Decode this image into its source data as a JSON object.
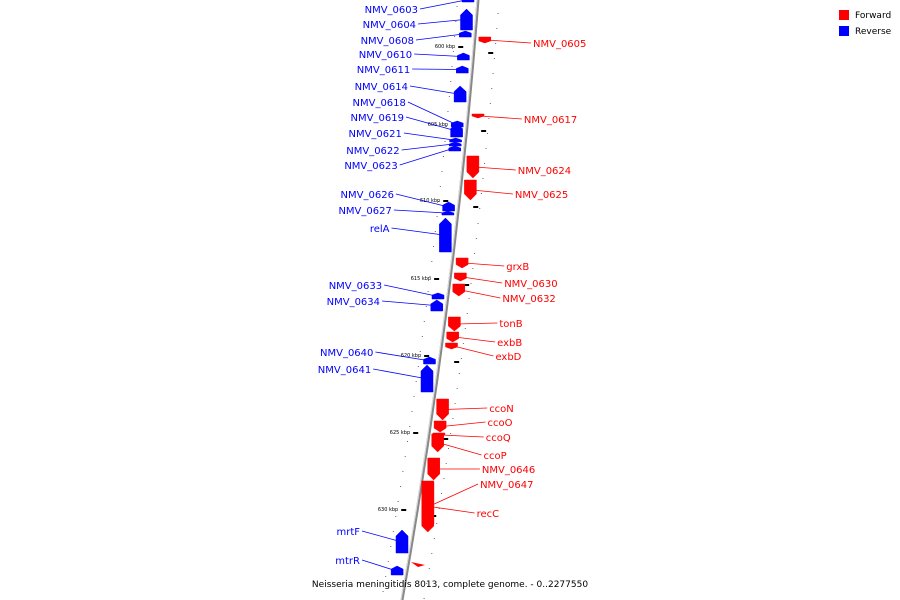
{
  "caption": "Neisseria meningitidis 8013, complete genome. - 0..2277550",
  "colors": {
    "forward": "#ff0000",
    "reverse": "#0000ff",
    "backbone": "#888888"
  },
  "legend": [
    {
      "label": "Forward",
      "color": "#ff0000"
    },
    {
      "label": "Reverse",
      "color": "#0000ff"
    }
  ],
  "ticks": [
    "600 kbp",
    "605 kbp",
    "610 kbp",
    "615 kbp",
    "620 kbp",
    "625 kbp",
    "630 kbp"
  ],
  "genes": [
    {
      "label": "NMV_0603",
      "strand": "reverse"
    },
    {
      "label": "NMV_0604",
      "strand": "reverse"
    },
    {
      "label": "NMV_0608",
      "strand": "reverse"
    },
    {
      "label": "NMV_0610",
      "strand": "reverse"
    },
    {
      "label": "NMV_0611",
      "strand": "reverse"
    },
    {
      "label": "NMV_0614",
      "strand": "reverse"
    },
    {
      "label": "NMV_0618",
      "strand": "reverse"
    },
    {
      "label": "NMV_0619",
      "strand": "reverse"
    },
    {
      "label": "NMV_0621",
      "strand": "reverse"
    },
    {
      "label": "NMV_0622",
      "strand": "reverse"
    },
    {
      "label": "NMV_0623",
      "strand": "reverse"
    },
    {
      "label": "NMV_0626",
      "strand": "reverse"
    },
    {
      "label": "NMV_0627",
      "strand": "reverse"
    },
    {
      "label": "relA",
      "strand": "reverse"
    },
    {
      "label": "NMV_0633",
      "strand": "reverse"
    },
    {
      "label": "NMV_0634",
      "strand": "reverse"
    },
    {
      "label": "NMV_0640",
      "strand": "reverse"
    },
    {
      "label": "NMV_0641",
      "strand": "reverse"
    },
    {
      "label": "mrtF",
      "strand": "reverse"
    },
    {
      "label": "mtrR",
      "strand": "reverse"
    },
    {
      "label": "NMV_0605",
      "strand": "forward"
    },
    {
      "label": "NMV_0617",
      "strand": "forward"
    },
    {
      "label": "NMV_0624",
      "strand": "forward"
    },
    {
      "label": "NMV_0625",
      "strand": "forward"
    },
    {
      "label": "grxB",
      "strand": "forward"
    },
    {
      "label": "NMV_0630",
      "strand": "forward"
    },
    {
      "label": "NMV_0632",
      "strand": "forward"
    },
    {
      "label": "tonB",
      "strand": "forward"
    },
    {
      "label": "exbB",
      "strand": "forward"
    },
    {
      "label": "exbD",
      "strand": "forward"
    },
    {
      "label": "ccoN",
      "strand": "forward"
    },
    {
      "label": "ccoO",
      "strand": "forward"
    },
    {
      "label": "ccoQ",
      "strand": "forward"
    },
    {
      "label": "ccoP",
      "strand": "forward"
    },
    {
      "label": "NMV_0646",
      "strand": "forward"
    },
    {
      "label": "NMV_0647",
      "strand": "forward"
    },
    {
      "label": "recC",
      "strand": "forward"
    }
  ]
}
